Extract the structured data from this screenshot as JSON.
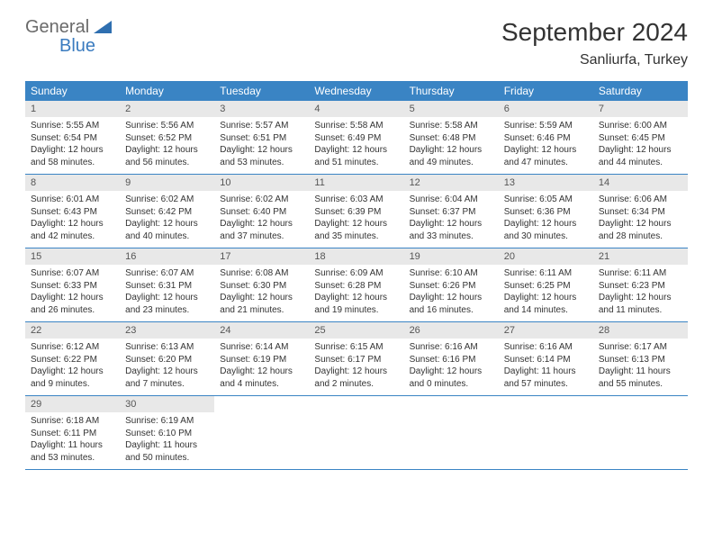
{
  "brand": {
    "word1": "General",
    "word2": "Blue"
  },
  "title": "September 2024",
  "location": "Sanliurfa, Turkey",
  "colors": {
    "header_bg": "#3a84c4",
    "header_text": "#ffffff",
    "daynum_bg": "#e8e8e8",
    "row_border": "#3a84c4",
    "logo_gray": "#6a6a6a",
    "logo_blue": "#3a7bbf"
  },
  "weekdays": [
    "Sunday",
    "Monday",
    "Tuesday",
    "Wednesday",
    "Thursday",
    "Friday",
    "Saturday"
  ],
  "weeks": [
    [
      {
        "n": "1",
        "sr": "Sunrise: 5:55 AM",
        "ss": "Sunset: 6:54 PM",
        "dl": "Daylight: 12 hours and 58 minutes."
      },
      {
        "n": "2",
        "sr": "Sunrise: 5:56 AM",
        "ss": "Sunset: 6:52 PM",
        "dl": "Daylight: 12 hours and 56 minutes."
      },
      {
        "n": "3",
        "sr": "Sunrise: 5:57 AM",
        "ss": "Sunset: 6:51 PM",
        "dl": "Daylight: 12 hours and 53 minutes."
      },
      {
        "n": "4",
        "sr": "Sunrise: 5:58 AM",
        "ss": "Sunset: 6:49 PM",
        "dl": "Daylight: 12 hours and 51 minutes."
      },
      {
        "n": "5",
        "sr": "Sunrise: 5:58 AM",
        "ss": "Sunset: 6:48 PM",
        "dl": "Daylight: 12 hours and 49 minutes."
      },
      {
        "n": "6",
        "sr": "Sunrise: 5:59 AM",
        "ss": "Sunset: 6:46 PM",
        "dl": "Daylight: 12 hours and 47 minutes."
      },
      {
        "n": "7",
        "sr": "Sunrise: 6:00 AM",
        "ss": "Sunset: 6:45 PM",
        "dl": "Daylight: 12 hours and 44 minutes."
      }
    ],
    [
      {
        "n": "8",
        "sr": "Sunrise: 6:01 AM",
        "ss": "Sunset: 6:43 PM",
        "dl": "Daylight: 12 hours and 42 minutes."
      },
      {
        "n": "9",
        "sr": "Sunrise: 6:02 AM",
        "ss": "Sunset: 6:42 PM",
        "dl": "Daylight: 12 hours and 40 minutes."
      },
      {
        "n": "10",
        "sr": "Sunrise: 6:02 AM",
        "ss": "Sunset: 6:40 PM",
        "dl": "Daylight: 12 hours and 37 minutes."
      },
      {
        "n": "11",
        "sr": "Sunrise: 6:03 AM",
        "ss": "Sunset: 6:39 PM",
        "dl": "Daylight: 12 hours and 35 minutes."
      },
      {
        "n": "12",
        "sr": "Sunrise: 6:04 AM",
        "ss": "Sunset: 6:37 PM",
        "dl": "Daylight: 12 hours and 33 minutes."
      },
      {
        "n": "13",
        "sr": "Sunrise: 6:05 AM",
        "ss": "Sunset: 6:36 PM",
        "dl": "Daylight: 12 hours and 30 minutes."
      },
      {
        "n": "14",
        "sr": "Sunrise: 6:06 AM",
        "ss": "Sunset: 6:34 PM",
        "dl": "Daylight: 12 hours and 28 minutes."
      }
    ],
    [
      {
        "n": "15",
        "sr": "Sunrise: 6:07 AM",
        "ss": "Sunset: 6:33 PM",
        "dl": "Daylight: 12 hours and 26 minutes."
      },
      {
        "n": "16",
        "sr": "Sunrise: 6:07 AM",
        "ss": "Sunset: 6:31 PM",
        "dl": "Daylight: 12 hours and 23 minutes."
      },
      {
        "n": "17",
        "sr": "Sunrise: 6:08 AM",
        "ss": "Sunset: 6:30 PM",
        "dl": "Daylight: 12 hours and 21 minutes."
      },
      {
        "n": "18",
        "sr": "Sunrise: 6:09 AM",
        "ss": "Sunset: 6:28 PM",
        "dl": "Daylight: 12 hours and 19 minutes."
      },
      {
        "n": "19",
        "sr": "Sunrise: 6:10 AM",
        "ss": "Sunset: 6:26 PM",
        "dl": "Daylight: 12 hours and 16 minutes."
      },
      {
        "n": "20",
        "sr": "Sunrise: 6:11 AM",
        "ss": "Sunset: 6:25 PM",
        "dl": "Daylight: 12 hours and 14 minutes."
      },
      {
        "n": "21",
        "sr": "Sunrise: 6:11 AM",
        "ss": "Sunset: 6:23 PM",
        "dl": "Daylight: 12 hours and 11 minutes."
      }
    ],
    [
      {
        "n": "22",
        "sr": "Sunrise: 6:12 AM",
        "ss": "Sunset: 6:22 PM",
        "dl": "Daylight: 12 hours and 9 minutes."
      },
      {
        "n": "23",
        "sr": "Sunrise: 6:13 AM",
        "ss": "Sunset: 6:20 PM",
        "dl": "Daylight: 12 hours and 7 minutes."
      },
      {
        "n": "24",
        "sr": "Sunrise: 6:14 AM",
        "ss": "Sunset: 6:19 PM",
        "dl": "Daylight: 12 hours and 4 minutes."
      },
      {
        "n": "25",
        "sr": "Sunrise: 6:15 AM",
        "ss": "Sunset: 6:17 PM",
        "dl": "Daylight: 12 hours and 2 minutes."
      },
      {
        "n": "26",
        "sr": "Sunrise: 6:16 AM",
        "ss": "Sunset: 6:16 PM",
        "dl": "Daylight: 12 hours and 0 minutes."
      },
      {
        "n": "27",
        "sr": "Sunrise: 6:16 AM",
        "ss": "Sunset: 6:14 PM",
        "dl": "Daylight: 11 hours and 57 minutes."
      },
      {
        "n": "28",
        "sr": "Sunrise: 6:17 AM",
        "ss": "Sunset: 6:13 PM",
        "dl": "Daylight: 11 hours and 55 minutes."
      }
    ],
    [
      {
        "n": "29",
        "sr": "Sunrise: 6:18 AM",
        "ss": "Sunset: 6:11 PM",
        "dl": "Daylight: 11 hours and 53 minutes."
      },
      {
        "n": "30",
        "sr": "Sunrise: 6:19 AM",
        "ss": "Sunset: 6:10 PM",
        "dl": "Daylight: 11 hours and 50 minutes."
      },
      null,
      null,
      null,
      null,
      null
    ]
  ]
}
